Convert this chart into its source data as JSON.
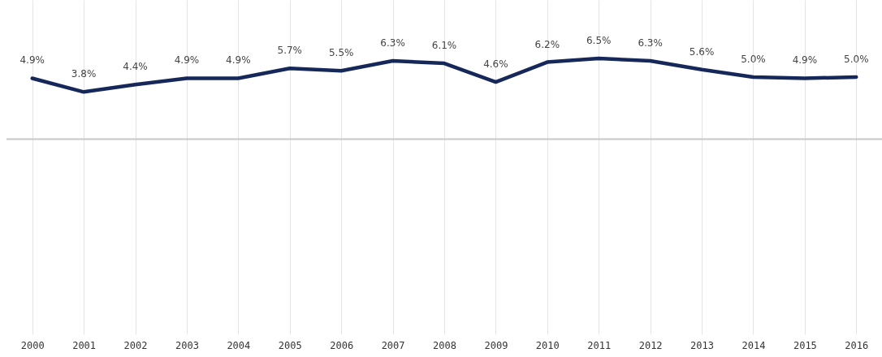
{
  "chart_data": {
    "type": "line",
    "categories": [
      "2000",
      "2001",
      "2002",
      "2003",
      "2004",
      "2005",
      "2006",
      "2007",
      "2008",
      "2009",
      "2010",
      "2011",
      "2012",
      "2013",
      "2014",
      "2015",
      "2016"
    ],
    "series": [
      {
        "color": "#16275a",
        "values": [
          4.9,
          3.8,
          4.4,
          4.9,
          4.9,
          5.7,
          5.5,
          6.3,
          6.1,
          4.6,
          6.2,
          6.5,
          6.3,
          5.6,
          5.0,
          4.9,
          5.0
        ],
        "value_labels": [
          "4.9%",
          "3.8%",
          "4.4%",
          "4.9%",
          "4.9%",
          "5.7%",
          "5.5%",
          "6.3%",
          "6.1%",
          "4.6%",
          "6.2%",
          "6.5%",
          "6.3%",
          "5.6%",
          "5.0%",
          "4.9%",
          "5.0%"
        ]
      }
    ],
    "ylim": [
      -15.7,
      11.2
    ],
    "tick_labels": "x",
    "grid": "x",
    "marker": "none",
    "line_style": "solid",
    "ref_lines": [
      {
        "axis": "y",
        "value": 0,
        "color": "#c8c8c8"
      }
    ]
  }
}
